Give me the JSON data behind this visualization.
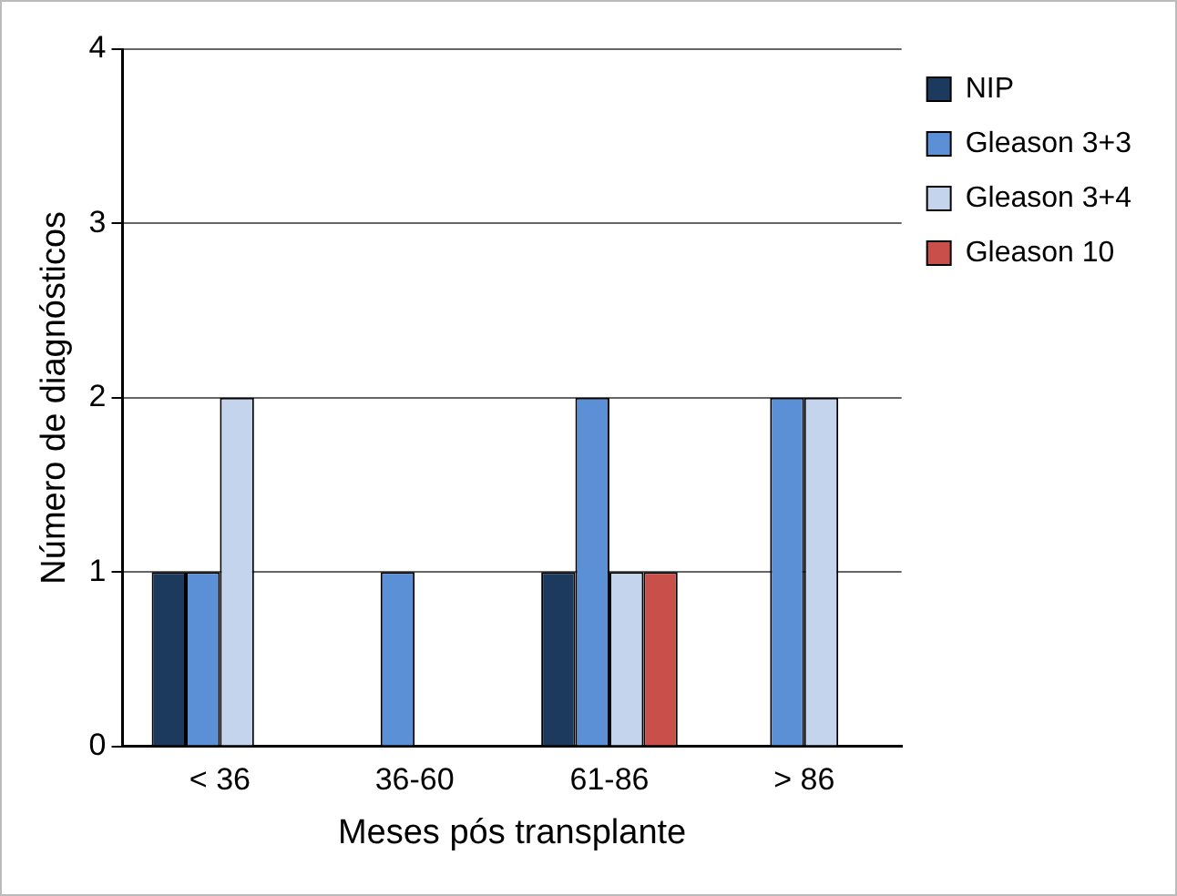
{
  "chart_data": {
    "type": "bar",
    "xlabel": "Meses pós transplante",
    "ylabel": "Número de diagnósticos",
    "categories": [
      "< 36",
      "36-60",
      "61-86",
      "> 86"
    ],
    "series": [
      {
        "name": "NIP",
        "color": "#1c3a5e",
        "values": [
          1,
          0,
          1,
          0
        ]
      },
      {
        "name": "Gleason 3+3",
        "color": "#5b8fd6",
        "values": [
          1,
          1,
          2,
          2
        ]
      },
      {
        "name": "Gleason 3+4",
        "color": "#c3d4ec",
        "values": [
          2,
          0,
          1,
          2
        ]
      },
      {
        "name": "Gleason 10",
        "color": "#c9504a",
        "values": [
          0,
          0,
          1,
          0
        ]
      }
    ],
    "ylim": [
      0,
      4
    ],
    "yticks": [
      0,
      1,
      2,
      3,
      4
    ],
    "grid": "y",
    "legend": "right"
  }
}
